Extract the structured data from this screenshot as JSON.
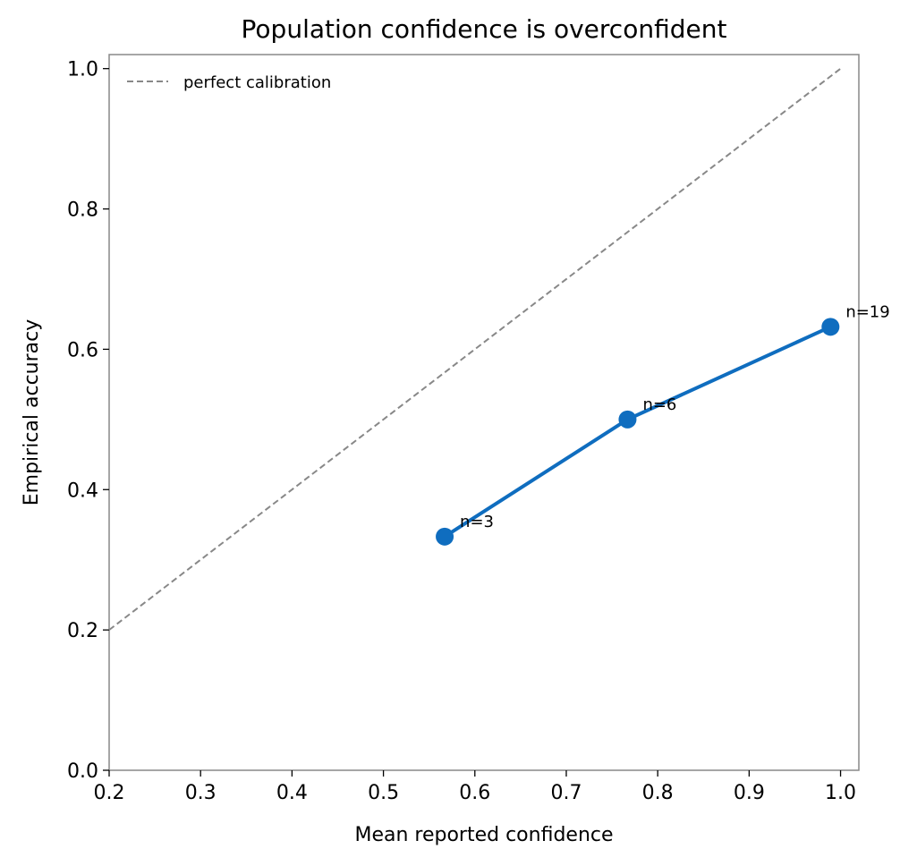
{
  "chart_data": {
    "type": "line",
    "title": "Population confidence is overconfident",
    "xlabel": "Mean reported confidence",
    "ylabel": "Empirical accuracy",
    "xlim": [
      0.2,
      1.02
    ],
    "ylim": [
      0.0,
      1.02
    ],
    "xticks": [
      0.2,
      0.3,
      0.4,
      0.5,
      0.6,
      0.7,
      0.8,
      0.9,
      1.0
    ],
    "xtick_labels": [
      "0.2",
      "0.3",
      "0.4",
      "0.5",
      "0.6",
      "0.7",
      "0.8",
      "0.9",
      "1.0"
    ],
    "yticks": [
      0.0,
      0.2,
      0.4,
      0.6,
      0.8,
      1.0
    ],
    "ytick_labels": [
      "0.0",
      "0.2",
      "0.4",
      "0.6",
      "0.8",
      "1.0"
    ],
    "grid": false,
    "legend_position": "top-left",
    "reference_line": {
      "name": "perfect calibration",
      "x": [
        0.2,
        1.0
      ],
      "y": [
        0.2,
        1.0
      ],
      "color": "#888888",
      "style": "dashed"
    },
    "series": [
      {
        "color": "#0f6dbf",
        "x": [
          0.567,
          0.767,
          0.989
        ],
        "y": [
          0.333,
          0.5,
          0.632
        ],
        "point_labels": [
          "n=3",
          "n=6",
          "n=19"
        ]
      }
    ]
  }
}
